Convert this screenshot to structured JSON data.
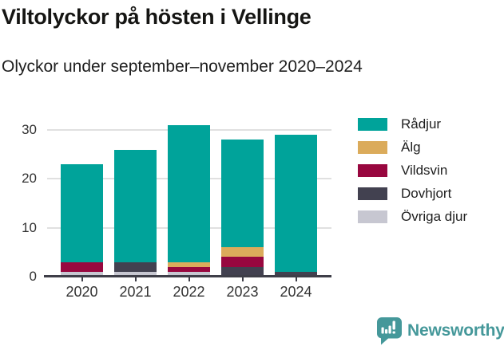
{
  "header": {
    "title": "Viltolyckor på hösten i Vellinge",
    "subtitle": "Olyckor under september–november 2020–2024"
  },
  "chart_data": {
    "type": "bar",
    "stacked": true,
    "title": "Viltolyckor på hösten i Vellinge",
    "subtitle": "Olyckor under september–november 2020–2024",
    "categories": [
      "2020",
      "2021",
      "2022",
      "2023",
      "2024"
    ],
    "series": [
      {
        "name": "Rådjur",
        "color": "#00A39A",
        "values": [
          20,
          23,
          28,
          22,
          28
        ]
      },
      {
        "name": "Älg",
        "color": "#DBAB5B",
        "values": [
          0,
          0,
          1,
          2,
          0
        ]
      },
      {
        "name": "Vildsvin",
        "color": "#98073F",
        "values": [
          2,
          0,
          1,
          2,
          0
        ]
      },
      {
        "name": "Dovhjort",
        "color": "#424150",
        "values": [
          0,
          2,
          0,
          2,
          1
        ]
      },
      {
        "name": "Övriga djur",
        "color": "#C7C7D1",
        "values": [
          1,
          1,
          1,
          0,
          0
        ]
      }
    ],
    "stack_order_bottom_to_top": [
      "Övriga djur",
      "Dovhjort",
      "Vildsvin",
      "Älg",
      "Rådjur"
    ],
    "totals": [
      23,
      26,
      31,
      28,
      29
    ],
    "xlabel": "",
    "ylabel": "",
    "yticks": [
      0,
      10,
      20,
      30
    ],
    "ylim": [
      0,
      33.75
    ],
    "grid": "horizontal",
    "legend_position": "right"
  },
  "style": {
    "grid_color": "#E0E0E0",
    "axis_color": "#3E3E48",
    "tick_label_color": "#333333"
  },
  "footer": {
    "brand": "Newsworthy",
    "brand_color": "#45989A",
    "brand_icon": "bar-chart-speech-bubble-icon"
  }
}
